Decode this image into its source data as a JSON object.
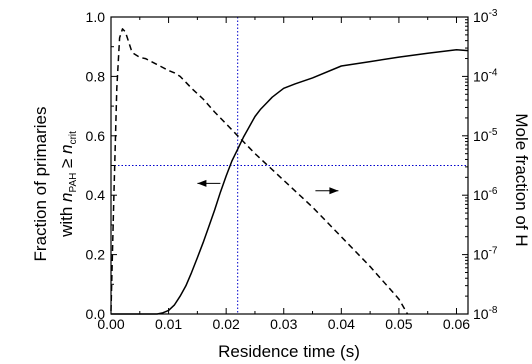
{
  "chart_data": {
    "type": "line",
    "xlabel": "Residence time (s)",
    "ylabel_left": {
      "line1": "Fraction of primaries",
      "line2_prefix": "with ",
      "n": "n",
      "sub1": "PAH",
      "geq": " ≥ ",
      "sub2": "crit"
    },
    "ylabel_right": "Mole fraction of H",
    "xlim": [
      0,
      0.062
    ],
    "ylim_left": [
      0,
      1.0
    ],
    "ylim_right_log10": [
      -8,
      -3
    ],
    "x_ticks": [
      0.0,
      0.01,
      0.02,
      0.03,
      0.04,
      0.05,
      0.06
    ],
    "x_tick_labels": [
      "0.00",
      "0.01",
      "0.02",
      "0.03",
      "0.04",
      "0.05",
      "0.06"
    ],
    "y_left_ticks": [
      0.0,
      0.2,
      0.4,
      0.6,
      0.8,
      1.0
    ],
    "y_left_tick_labels": [
      "0.0",
      "0.2",
      "0.4",
      "0.6",
      "0.8",
      "1.0"
    ],
    "y_right_ticks": [
      {
        "exp": -8,
        "base": "10",
        "sup": "-8"
      },
      {
        "exp": -7,
        "base": "10",
        "sup": "-7"
      },
      {
        "exp": -6,
        "base": "10",
        "sup": "-6"
      },
      {
        "exp": -5,
        "base": "10",
        "sup": "-5"
      },
      {
        "exp": -4,
        "base": "10",
        "sup": "-4"
      },
      {
        "exp": -3,
        "base": "10",
        "sup": "-3"
      }
    ],
    "series": [
      {
        "axis": "left",
        "style": "solid",
        "points": [
          [
            0.0,
            0.0
          ],
          [
            0.008,
            0.0
          ],
          [
            0.009,
            0.004
          ],
          [
            0.01,
            0.012
          ],
          [
            0.011,
            0.03
          ],
          [
            0.012,
            0.06
          ],
          [
            0.013,
            0.095
          ],
          [
            0.014,
            0.14
          ],
          [
            0.015,
            0.19
          ],
          [
            0.016,
            0.24
          ],
          [
            0.017,
            0.295
          ],
          [
            0.018,
            0.35
          ],
          [
            0.019,
            0.41
          ],
          [
            0.02,
            0.465
          ],
          [
            0.021,
            0.515
          ],
          [
            0.022,
            0.555
          ],
          [
            0.023,
            0.595
          ],
          [
            0.024,
            0.63
          ],
          [
            0.025,
            0.665
          ],
          [
            0.026,
            0.69
          ],
          [
            0.027,
            0.71
          ],
          [
            0.028,
            0.73
          ],
          [
            0.029,
            0.745
          ],
          [
            0.03,
            0.76
          ],
          [
            0.032,
            0.775
          ],
          [
            0.035,
            0.795
          ],
          [
            0.04,
            0.835
          ],
          [
            0.045,
            0.85
          ],
          [
            0.05,
            0.865
          ],
          [
            0.055,
            0.878
          ],
          [
            0.06,
            0.89
          ],
          [
            0.062,
            0.887
          ]
        ]
      },
      {
        "axis": "right",
        "style": "dashed",
        "points_log10": [
          [
            0.0,
            -7.95
          ],
          [
            0.0005,
            -6.0
          ],
          [
            0.001,
            -4.2
          ],
          [
            0.0015,
            -3.35
          ],
          [
            0.002,
            -3.2
          ],
          [
            0.0025,
            -3.25
          ],
          [
            0.003,
            -3.4
          ],
          [
            0.0035,
            -3.55
          ],
          [
            0.004,
            -3.62
          ],
          [
            0.005,
            -3.68
          ],
          [
            0.006,
            -3.7
          ],
          [
            0.007,
            -3.75
          ],
          [
            0.008,
            -3.8
          ],
          [
            0.009,
            -3.85
          ],
          [
            0.01,
            -3.9
          ],
          [
            0.011,
            -3.94
          ],
          [
            0.012,
            -4.0
          ],
          [
            0.013,
            -4.1
          ],
          [
            0.014,
            -4.2
          ],
          [
            0.016,
            -4.38
          ],
          [
            0.018,
            -4.6
          ],
          [
            0.02,
            -4.8
          ],
          [
            0.022,
            -5.0
          ],
          [
            0.025,
            -5.3
          ],
          [
            0.03,
            -5.75
          ],
          [
            0.035,
            -6.2
          ],
          [
            0.04,
            -6.7
          ],
          [
            0.045,
            -7.2
          ],
          [
            0.05,
            -7.75
          ],
          [
            0.0515,
            -8.0
          ]
        ]
      }
    ],
    "reference_lines": {
      "vertical_x": 0.022,
      "horizontal_y_left": 0.5
    },
    "annotations": [
      {
        "type": "arrow",
        "direction": "left",
        "points_to": "left axis",
        "at": [
          0.019,
          0.44
        ]
      },
      {
        "type": "arrow",
        "direction": "right",
        "points_to": "right axis",
        "at": [
          0.0355,
          0.415
        ]
      }
    ],
    "grid": false,
    "colors": {
      "line": "#000000",
      "reference_line": "#0000cc"
    }
  }
}
